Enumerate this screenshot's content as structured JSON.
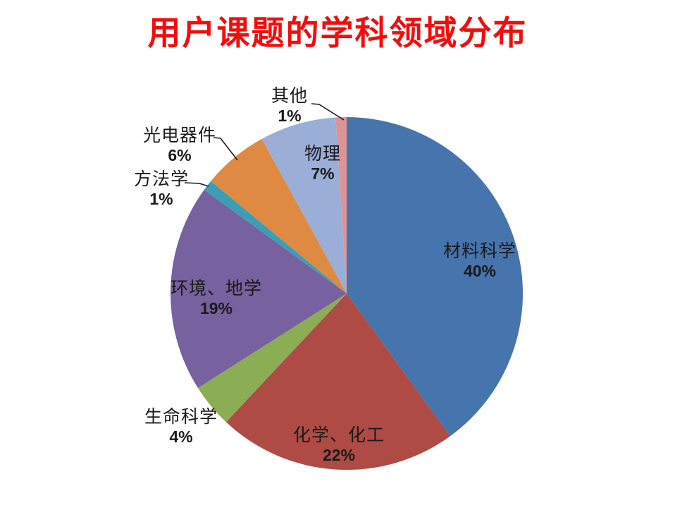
{
  "chart_data": {
    "type": "pie",
    "title": "用户课题的学科领域分布",
    "title_color": "#F20D0D",
    "label_color": "#1A1A1A",
    "leader_line_color": "#1A1A1A",
    "unit": "%",
    "start_angle_deg": 0,
    "direction": "clockwise",
    "legend": "none",
    "background": "#FFFFFF",
    "categories": [
      "材料科学",
      "化学、化工",
      "生命科学",
      "环境、地学",
      "方法学",
      "光电器件",
      "物理",
      "其他"
    ],
    "values": [
      40,
      22,
      4,
      19,
      1,
      6,
      7,
      1
    ],
    "colors": [
      "#4674AD",
      "#AE4B45",
      "#8BAD53",
      "#77619E",
      "#3C9EB5",
      "#DE8A43",
      "#9AAED8",
      "#DC9597"
    ],
    "label_placement": [
      "inside",
      "inside",
      "outside",
      "inside",
      "outside-leader",
      "outside-leader",
      "inside",
      "outside-leader"
    ]
  }
}
